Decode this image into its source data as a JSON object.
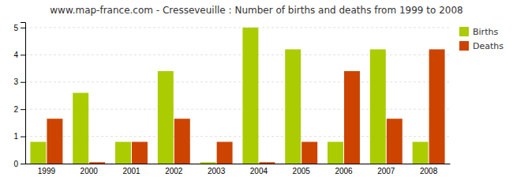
{
  "chart_data": {
    "type": "bar",
    "title": "www.map-france.com - Cresseveuille : Number of births and deaths from 1999 to 2008",
    "categories": [
      "1999",
      "2000",
      "2001",
      "2002",
      "2003",
      "2004",
      "2005",
      "2006",
      "2007",
      "2008"
    ],
    "series": [
      {
        "name": "Births",
        "color": "#aacc00",
        "values": [
          0.8,
          2.6,
          0.8,
          3.4,
          0.05,
          5.0,
          4.2,
          0.8,
          4.2,
          0.8
        ]
      },
      {
        "name": "Deaths",
        "color": "#cc4400",
        "values": [
          1.65,
          0.05,
          0.8,
          1.65,
          0.8,
          0.05,
          0.8,
          3.4,
          1.65,
          4.2
        ]
      }
    ],
    "ylim": [
      0,
      5.2
    ],
    "yticks": [
      0,
      1,
      2,
      3,
      4,
      5
    ],
    "grid": true,
    "legend": "upper-right"
  }
}
